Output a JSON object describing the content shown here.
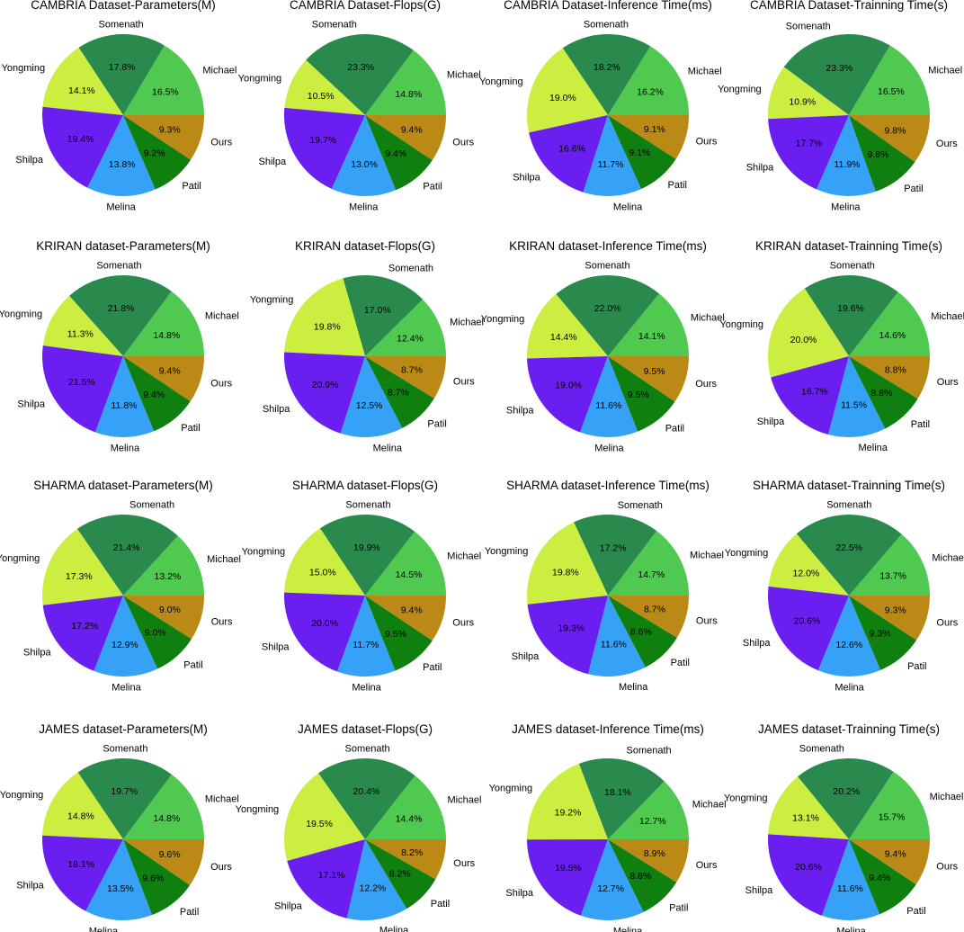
{
  "labels": [
    "Michael",
    "Somenath",
    "Yongming",
    "Shilpa",
    "Melina",
    "Patil",
    "Ours"
  ],
  "colors": {
    "Michael": "#4fc94f",
    "Somenath": "#2a8a4e",
    "Yongming": "#cbee40",
    "Shilpa": "#6a1ef0",
    "Melina": "#35a2f7",
    "Patil": "#0f7f0f",
    "Ours": "#bb8a16"
  },
  "chart_data": [
    {
      "type": "pie",
      "title": "CAMBRIA Dataset-Parameters(M)",
      "categories": [
        "Michael",
        "Somenath",
        "Yongming",
        "Shilpa",
        "Melina",
        "Patil",
        "Ours"
      ],
      "values": [
        16.5,
        17.8,
        14.1,
        19.4,
        13.8,
        9.2,
        9.3
      ],
      "value_labels": [
        "16.5%",
        "17.8%",
        "14.1%",
        "19.4%",
        "13.8%",
        "9.2%",
        "9.3%"
      ]
    },
    {
      "type": "pie",
      "title": "CAMBRIA Dataset-Flops(G)",
      "categories": [
        "Michael",
        "Somenath",
        "Yongming",
        "Shilpa",
        "Melina",
        "Patil",
        "Ours"
      ],
      "values": [
        14.8,
        23.3,
        10.5,
        19.7,
        13.0,
        9.4,
        9.4
      ],
      "value_labels": [
        "14.8%",
        "23.3%",
        "10.5%",
        "19.7%",
        "13.0%",
        "9.4%",
        "9.4%"
      ]
    },
    {
      "type": "pie",
      "title": "CAMBRIA Dataset-Inference Time(ms)",
      "categories": [
        "Michael",
        "Somenath",
        "Yongming",
        "Shilpa",
        "Melina",
        "Patil",
        "Ours"
      ],
      "values": [
        16.2,
        18.2,
        19.0,
        16.6,
        11.7,
        9.1,
        9.1
      ],
      "value_labels": [
        "16.2%",
        "18.2%",
        "19.0%",
        "16.6%",
        "11.7%",
        "9.1%",
        "9.1%"
      ]
    },
    {
      "type": "pie",
      "title": "CAMBRIA Dataset-Trainning Time(s)",
      "categories": [
        "Michael",
        "Somenath",
        "Yongming",
        "Shilpa",
        "Melina",
        "Patil",
        "Ours"
      ],
      "values": [
        16.5,
        23.3,
        10.9,
        17.7,
        11.9,
        9.8,
        9.8
      ],
      "value_labels": [
        "16.5%",
        "23.3%",
        "10.9%",
        "17.7%",
        "11.9%",
        "9.8%",
        "9.8%"
      ]
    },
    {
      "type": "pie",
      "title": "KRIRAN dataset-Parameters(M)",
      "categories": [
        "Michael",
        "Somenath",
        "Yongming",
        "Shilpa",
        "Melina",
        "Patil",
        "Ours"
      ],
      "values": [
        14.8,
        21.8,
        11.3,
        21.5,
        11.8,
        9.4,
        9.4
      ],
      "value_labels": [
        "14.8%",
        "21.8%",
        "11.3%",
        "21.5%",
        "11.8%",
        "9.4%",
        "9.4%"
      ]
    },
    {
      "type": "pie",
      "title": "KRIRAN dataset-Flops(G)",
      "categories": [
        "Michael",
        "Somenath",
        "Yongming",
        "Shilpa",
        "Melina",
        "Patil",
        "Ours"
      ],
      "values": [
        12.4,
        17.0,
        19.8,
        20.9,
        12.5,
        8.7,
        8.7
      ],
      "value_labels": [
        "12.4%",
        "17.0%",
        "19.8%",
        "20.9%",
        "12.5%",
        "8.7%",
        "8.7%"
      ]
    },
    {
      "type": "pie",
      "title": "KRIRAN dataset-Inference Time(ms)",
      "categories": [
        "Michael",
        "Somenath",
        "Yongming",
        "Shilpa",
        "Melina",
        "Patil",
        "Ours"
      ],
      "values": [
        14.1,
        22.0,
        14.4,
        19.0,
        11.6,
        9.5,
        9.5
      ],
      "value_labels": [
        "14.1%",
        "22.0%",
        "14.4%",
        "19.0%",
        "11.6%",
        "9.5%",
        "9.5%"
      ]
    },
    {
      "type": "pie",
      "title": "KRIRAN dataset-Trainning Time(s)",
      "categories": [
        "Michael",
        "Somenath",
        "Yongming",
        "Shilpa",
        "Melina",
        "Patil",
        "Ours"
      ],
      "values": [
        14.6,
        19.6,
        20.0,
        16.7,
        11.5,
        8.8,
        8.8
      ],
      "value_labels": [
        "14.6%",
        "19.6%",
        "20.0%",
        "16.7%",
        "11.5%",
        "8.8%",
        "8.8%"
      ]
    },
    {
      "type": "pie",
      "title": "SHARMA dataset-Parameters(M)",
      "categories": [
        "Michael",
        "Somenath",
        "Yongming",
        "Shilpa",
        "Melina",
        "Patil",
        "Ours"
      ],
      "values": [
        13.2,
        21.4,
        17.3,
        17.2,
        12.9,
        9.0,
        9.0
      ],
      "value_labels": [
        "13.2%",
        "21.4%",
        "17.3%",
        "17.2%",
        "12.9%",
        "9.0%",
        "9.0%"
      ]
    },
    {
      "type": "pie",
      "title": "SHARMA dataset-Flops(G)",
      "categories": [
        "Michael",
        "Somenath",
        "Yongming",
        "Shilpa",
        "Melina",
        "Patil",
        "Ours"
      ],
      "values": [
        14.5,
        19.9,
        15.0,
        20.0,
        11.7,
        9.5,
        9.4
      ],
      "value_labels": [
        "14.5%",
        "19.9%",
        "15.0%",
        "20.0%",
        "11.7%",
        "9.5%",
        "9.4%"
      ]
    },
    {
      "type": "pie",
      "title": "SHARMA dataset-Inference Time(ms)",
      "categories": [
        "Michael",
        "Somenath",
        "Yongming",
        "Shilpa",
        "Melina",
        "Patil",
        "Ours"
      ],
      "values": [
        14.7,
        17.2,
        19.8,
        19.3,
        11.6,
        8.6,
        8.7
      ],
      "value_labels": [
        "14.7%",
        "17.2%",
        "19.8%",
        "19.3%",
        "11.6%",
        "8.6%",
        "8.7%"
      ]
    },
    {
      "type": "pie",
      "title": "SHARMA dataset-Trainning Time(s)",
      "categories": [
        "Michael",
        "Somenath",
        "Yongming",
        "Shilpa",
        "Melina",
        "Patil",
        "Ours"
      ],
      "values": [
        13.7,
        22.5,
        12.0,
        20.6,
        12.6,
        9.3,
        9.3
      ],
      "value_labels": [
        "13.7%",
        "22.5%",
        "12.0%",
        "20.6%",
        "12.6%",
        "9.3%",
        "9.3%"
      ]
    },
    {
      "type": "pie",
      "title": "JAMES dataset-Parameters(M)",
      "categories": [
        "Michael",
        "Somenath",
        "Yongming",
        "Shilpa",
        "Melina",
        "Patil",
        "Ours"
      ],
      "values": [
        14.8,
        19.7,
        14.8,
        18.1,
        13.5,
        9.6,
        9.6
      ],
      "value_labels": [
        "14.8%",
        "19.7%",
        "14.8%",
        "18.1%",
        "13.5%",
        "9.6%",
        "9.6%"
      ]
    },
    {
      "type": "pie",
      "title": "JAMES dataset-Flops(G)",
      "categories": [
        "Michael",
        "Somenath",
        "Yongming",
        "Shilpa",
        "Melina",
        "Patil",
        "Ours"
      ],
      "values": [
        14.4,
        20.4,
        19.5,
        17.1,
        12.2,
        8.2,
        8.2
      ],
      "value_labels": [
        "14.4%",
        "20.4%",
        "19.5%",
        "17.1%",
        "12.2%",
        "8.2%",
        "8.2%"
      ]
    },
    {
      "type": "pie",
      "title": "JAMES dataset-Inference Time(ms)",
      "categories": [
        "Michael",
        "Somenath",
        "Yongming",
        "Shilpa",
        "Melina",
        "Patil",
        "Ours"
      ],
      "values": [
        12.7,
        18.1,
        19.2,
        19.5,
        12.7,
        8.8,
        8.9
      ],
      "value_labels": [
        "12.7%",
        "18.1%",
        "19.2%",
        "19.5%",
        "12.7%",
        "8.8%",
        "8.9%"
      ]
    },
    {
      "type": "pie",
      "title": "JAMES dataset-Trainning Time(s)",
      "categories": [
        "Michael",
        "Somenath",
        "Yongming",
        "Shilpa",
        "Melina",
        "Patil",
        "Ours"
      ],
      "values": [
        15.7,
        20.2,
        13.1,
        20.6,
        11.6,
        9.4,
        9.4
      ],
      "value_labels": [
        "15.7%",
        "20.2%",
        "13.1%",
        "20.6%",
        "11.6%",
        "9.4%",
        "9.4%"
      ]
    }
  ]
}
